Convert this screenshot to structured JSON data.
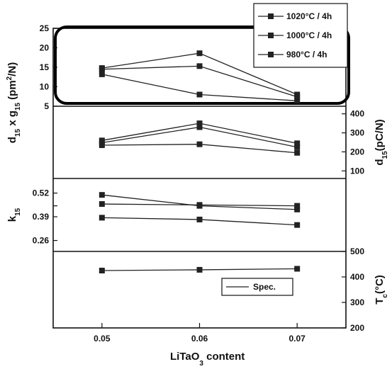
{
  "chart_data": {
    "type": "line",
    "x_label": {
      "main": "LiTaO",
      "sub": "3",
      "tail": " content"
    },
    "x_ticks": [
      "0.05",
      "0.06",
      "0.07"
    ],
    "x_values": [
      0.05,
      0.06,
      0.07
    ],
    "xlim": [
      0.045,
      0.075
    ],
    "highlight_box": true,
    "legend": {
      "entries": [
        "1020°C / 4h",
        "1000°C / 4h",
        "980°C / 4h"
      ],
      "placement": "top-right"
    },
    "panels": [
      {
        "id": "dg",
        "axis_side": "left",
        "label": {
          "main": "d",
          "sub1": "15",
          "mid": " x g",
          "sub2": "15",
          "tail": " (pm",
          "sup": "2",
          "end": "/N)"
        },
        "ylim": [
          5,
          25
        ],
        "ticks": [
          "25",
          "20",
          "15",
          "10",
          "5"
        ],
        "tick_values": [
          25,
          20,
          15,
          10,
          5
        ],
        "series": [
          {
            "legend_index": 0,
            "values": [
              14.8,
              18.6,
              8.0
            ]
          },
          {
            "legend_index": 1,
            "values": [
              14.5,
              15.3,
              7.4
            ]
          },
          {
            "legend_index": 2,
            "values": [
              13.2,
              8.0,
              6.4
            ]
          }
        ]
      },
      {
        "id": "d15",
        "axis_side": "right",
        "label": {
          "main": "d",
          "sub": "15",
          "tail": "(pC/N)"
        },
        "ylim": [
          60,
          440
        ],
        "ticks": [
          "400",
          "300",
          "200",
          "100"
        ],
        "tick_values": [
          400,
          300,
          200,
          100
        ],
        "series": [
          {
            "legend_index": 0,
            "values": [
              260,
              350,
              245
            ]
          },
          {
            "legend_index": 1,
            "values": [
              248,
              330,
              225
            ]
          },
          {
            "legend_index": 2,
            "values": [
              235,
              240,
              195
            ]
          }
        ]
      },
      {
        "id": "k15",
        "axis_side": "left",
        "label": {
          "main": "k",
          "sub": "15"
        },
        "ylim": [
          0.2,
          0.6
        ],
        "ticks": [
          "0.52",
          "0.39",
          "0.26"
        ],
        "tick_values": [
          0.52,
          0.45,
          0.39,
          0.26
        ],
        "tick_labels_shown": [
          0.52,
          0.39,
          0.26
        ],
        "series": [
          {
            "legend_index": 0,
            "values": [
              0.51,
              0.45,
              0.43
            ]
          },
          {
            "legend_index": 1,
            "values": [
              0.46,
              0.455,
              0.45
            ]
          },
          {
            "legend_index": 2,
            "values": [
              0.385,
              0.375,
              0.345
            ]
          }
        ]
      },
      {
        "id": "tc",
        "axis_side": "right",
        "label": {
          "main": "T",
          "sub": "c",
          "tail": "(°C)"
        },
        "ylim": [
          200,
          500
        ],
        "ticks": [
          "500",
          "400",
          "300",
          "200"
        ],
        "tick_values": [
          500,
          400,
          300,
          200
        ],
        "legend": {
          "entries": [
            "Spec."
          ],
          "placement": "lower-right"
        },
        "series": [
          {
            "name": "Spec.",
            "values": [
              425,
              428,
              432
            ]
          }
        ]
      }
    ]
  }
}
